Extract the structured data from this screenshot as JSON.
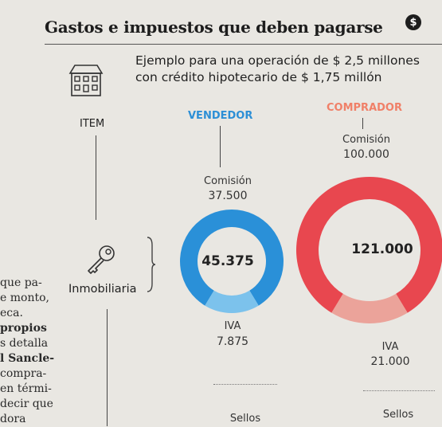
{
  "header": {
    "title": "Gastos e impuestos que deben pagarse",
    "badge_symbol": "$",
    "subtitle_line1": "Ejemplo para una operación de $ 2,5 millones",
    "subtitle_line2": "con crédito hipotecario de $ 1,75 millón"
  },
  "columns": {
    "item": "ITEM",
    "vendedor": "VENDEDOR",
    "comprador": "COMPRADOR"
  },
  "item_row": {
    "label": "Inmobiliaria"
  },
  "side_column": {
    "lines": [
      "que pa-",
      "e monto,",
      "eca.",
      "propios",
      "s detalla",
      "l Sancle-",
      "compra-",
      "en térmi-",
      "decir que",
      "dora"
    ],
    "bold_lines": [
      3,
      5
    ]
  },
  "colors": {
    "vendedor_main": "#2a90d8",
    "vendedor_iva": "#7cc2ec",
    "comprador_main": "#e8474f",
    "comprador_iva": "#eba39a",
    "vendedor_head": "#2c8fd6",
    "comprador_head": "#f08068"
  },
  "icons": [
    "house-icon",
    "key-icon",
    "dollar-icon"
  ],
  "chart_data": [
    {
      "type": "pie",
      "name": "VENDEDOR",
      "total": "45.375",
      "slices": [
        {
          "label": "Comisión",
          "value": 37500,
          "display": "37.500"
        },
        {
          "label": "IVA",
          "value": 7875,
          "display": "7.875"
        }
      ],
      "footer_label": "Sellos"
    },
    {
      "type": "pie",
      "name": "COMPRADOR",
      "total": "121.000",
      "slices": [
        {
          "label": "Comisión",
          "value": 100000,
          "display": "100.000"
        },
        {
          "label": "IVA",
          "value": 21000,
          "display": "21.000"
        }
      ],
      "footer_label": "Sellos"
    }
  ]
}
